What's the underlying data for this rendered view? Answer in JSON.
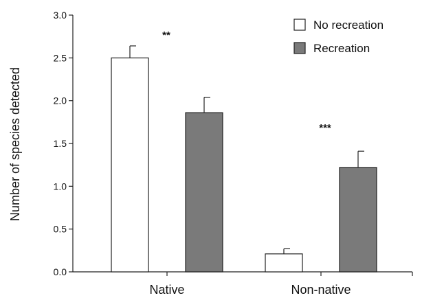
{
  "chart_data": {
    "type": "bar",
    "title": "",
    "xlabel": "",
    "ylabel": "Number of species detected",
    "ylim": [
      0,
      3.0
    ],
    "yticks": [
      "0.0",
      "0.5",
      "1.0",
      "1.5",
      "2.0",
      "2.5",
      "3.0"
    ],
    "categories": [
      "Native",
      "Non-native"
    ],
    "series": [
      {
        "name": "No recreation",
        "values": [
          2.5,
          0.21
        ],
        "errors": [
          0.14,
          0.06
        ],
        "color": "#ffffff"
      },
      {
        "name": "Recreation",
        "values": [
          1.86,
          1.22
        ],
        "errors": [
          0.18,
          0.19
        ],
        "color": "#7a7a7a"
      }
    ],
    "annotations": [
      "**",
      "***"
    ],
    "legend_position": "top-right",
    "grid": false
  }
}
